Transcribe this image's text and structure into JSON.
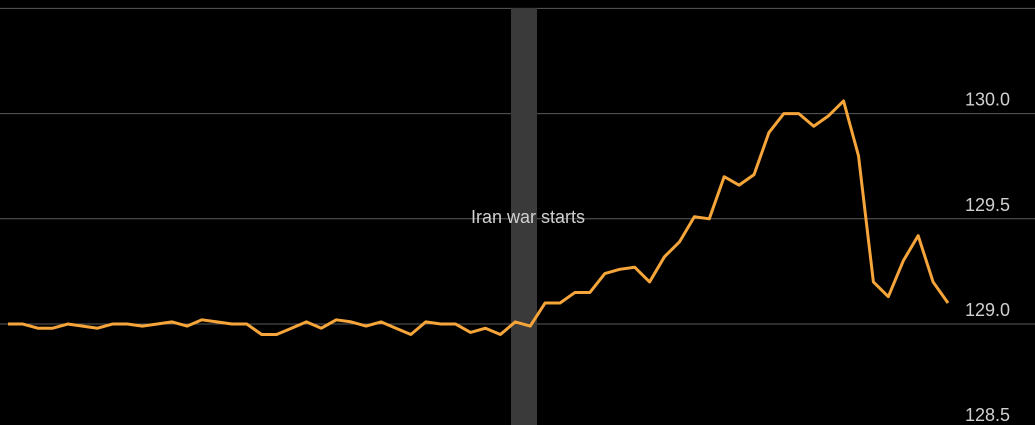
{
  "chart_data": {
    "type": "line",
    "annotation": "Iran war starts",
    "series": [
      {
        "color": "#f5a53a",
        "values": [
          129.0,
          129.0,
          128.98,
          128.98,
          129.0,
          128.99,
          128.98,
          129.0,
          129.0,
          128.99,
          129.0,
          129.01,
          128.99,
          129.02,
          129.01,
          129.0,
          129.0,
          128.95,
          128.95,
          128.98,
          129.01,
          128.98,
          129.02,
          129.01,
          128.99,
          129.01,
          128.98,
          128.95,
          129.01,
          129.0,
          129.0,
          128.96,
          128.98,
          128.95,
          129.01,
          128.99,
          129.1,
          129.1,
          129.15,
          129.15,
          129.24,
          129.26,
          129.27,
          129.2,
          129.32,
          129.39,
          129.51,
          129.5,
          129.7,
          129.66,
          129.71,
          129.91,
          130.0,
          130.0,
          129.94,
          129.99,
          130.06,
          129.8,
          129.2,
          129.13,
          129.3,
          129.42,
          129.2,
          129.1
        ]
      }
    ],
    "ylim": [
      128.52,
      130.54
    ],
    "yticks": [
      {
        "value": 128.5,
        "label": "128.5"
      },
      {
        "value": 129,
        "label": "129.0"
      },
      {
        "value": 129.5,
        "label": "129.5"
      },
      {
        "value": 130,
        "label": "130.0"
      },
      {
        "value": 130.5,
        "label": null
      }
    ],
    "grid": true
  }
}
